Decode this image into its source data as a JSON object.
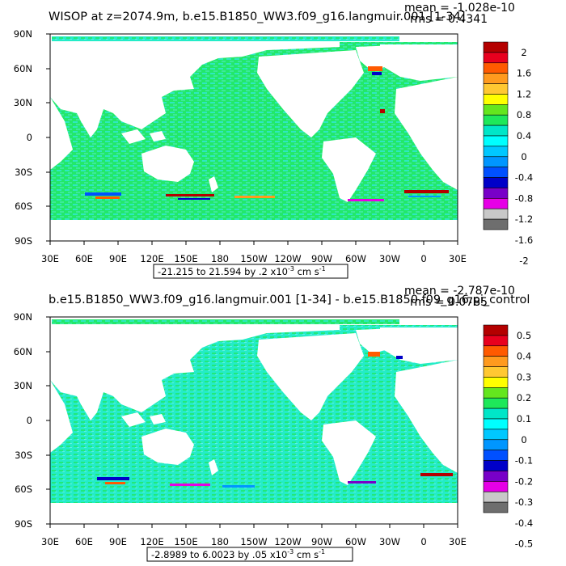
{
  "panels": [
    {
      "id": "top",
      "title": "WISOP at z=2074.9m, b.e15.B1850_WW3.f09_g16.langmuir.001 [1-34]",
      "stats_mean": "mean = -1.028e-10",
      "stats_rms": "rms = 0.4341",
      "range_text": "-21.215 to 21.594 by .2 x10",
      "range_exp": "-3",
      "range_unit": " cm s",
      "range_unit_exp": "-1",
      "colorbar_labels": [
        "2",
        "1.6",
        "1.2",
        "0.8",
        "0.4",
        "0",
        "-0.4",
        "-0.8",
        "-1.2",
        "-1.6",
        "-2"
      ]
    },
    {
      "id": "bottom",
      "title": "b.e15.B1850_WW3.f09_g16.langmuir.001 [1-34] - b.e15.B1850.f09_g16.pi_control",
      "stats_mean": "mean = -2.787e-10",
      "stats_rms": "rms = 0.0785",
      "range_text": "-2.8989 to 6.0023 by .05 x10",
      "range_exp": "-3",
      "range_unit": " cm s",
      "range_unit_exp": "-1",
      "colorbar_labels": [
        "0.5",
        "0.4",
        "0.3",
        "0.2",
        "0.1",
        "0",
        "-0.1",
        "-0.2",
        "-0.3",
        "-0.4",
        "-0.5"
      ]
    }
  ],
  "axes": {
    "lat_labels": [
      "90N",
      "60N",
      "30N",
      "0",
      "30S",
      "60S",
      "90S"
    ],
    "lon_labels": [
      "30E",
      "60E",
      "90E",
      "120E",
      "150E",
      "180",
      "150W",
      "120W",
      "90W",
      "60W",
      "30W",
      "0",
      "30E"
    ]
  },
  "colors": {
    "ocean": "#22e86a",
    "ocean_cyan": "#22ecd2",
    "land": "#ffffff",
    "colorbar": [
      "#b40000",
      "#e8001e",
      "#ff5a00",
      "#ff9a1e",
      "#ffc832",
      "#ffff00",
      "#64e61e",
      "#1ee85a",
      "#00e6c8",
      "#00ffff",
      "#00c8ff",
      "#0096ff",
      "#0050ff",
      "#0000c8",
      "#7800c8",
      "#e600e6",
      "#c8c8c8",
      "#6e6e6e"
    ]
  }
}
